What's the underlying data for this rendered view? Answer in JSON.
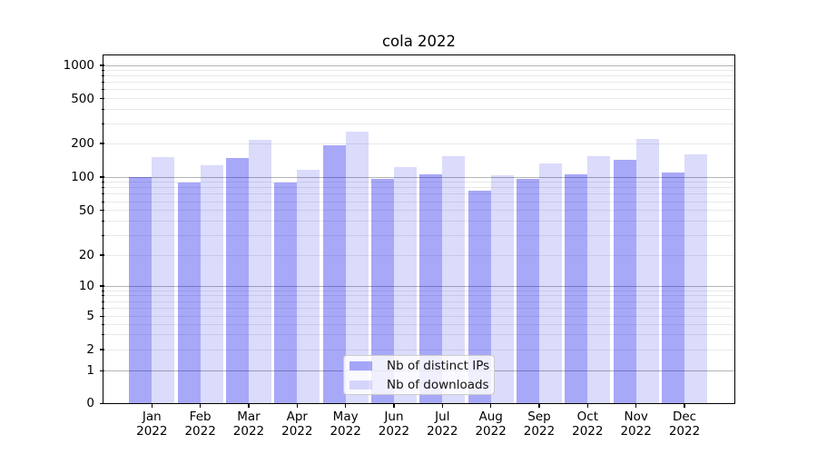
{
  "title": "cola 2022",
  "chart_data": {
    "type": "bar",
    "title": "cola 2022",
    "x_categories": [
      "Jan",
      "Feb",
      "Mar",
      "Apr",
      "May",
      "Jun",
      "Jul",
      "Aug",
      "Sep",
      "Oct",
      "Nov",
      "Dec"
    ],
    "x_year": "2022",
    "xlabel": "",
    "ylabel": "",
    "yscale": "symlog",
    "ylim": [
      0,
      1250
    ],
    "y_ticks": [
      1000,
      500,
      200,
      100,
      50,
      20,
      10,
      5,
      2,
      1,
      0
    ],
    "y_minor_ticks": [
      3,
      4,
      6,
      7,
      8,
      9,
      30,
      40,
      60,
      70,
      80,
      90,
      300,
      400,
      600,
      700,
      800,
      900
    ],
    "grid": true,
    "legend_position": "lower center",
    "series": [
      {
        "name": "Nb of distinct IPs",
        "color": "rgba(0,0,235,0.34)",
        "color_hex": "#a8a8f7",
        "values": [
          100,
          90,
          148,
          89,
          192,
          97,
          106,
          76,
          97,
          105,
          142,
          109
        ]
      },
      {
        "name": "Nb of downloads",
        "color": "rgba(0,0,235,0.14)",
        "color_hex": "#dbdbf9",
        "values": [
          151,
          128,
          217,
          116,
          256,
          122,
          154,
          104,
          132,
          154,
          218,
          161
        ]
      }
    ]
  },
  "colors": {
    "major_grid": "#b3b3b3",
    "minor_grid": "#e9e9e9",
    "axis": "#000000",
    "legend_border": "#cccccc",
    "background": "#ffffff"
  }
}
